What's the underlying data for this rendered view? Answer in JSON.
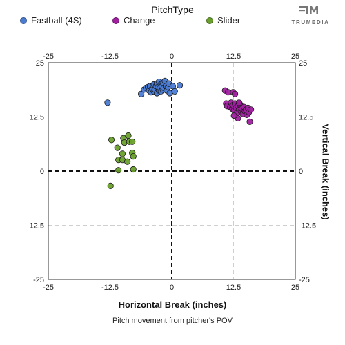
{
  "legend": {
    "title": "PitchType",
    "items": [
      {
        "label": "Fastball (4S)",
        "color": "#4a7bd4"
      },
      {
        "label": "Change",
        "color": "#a020a0"
      },
      {
        "label": "Slider",
        "color": "#6aa02c"
      }
    ]
  },
  "brand": {
    "name": "TRUMEDIA",
    "icon": "trumedia-logo-icon"
  },
  "chart_data": {
    "type": "scatter",
    "title": "",
    "xlabel": "Horizontal Break (inches)",
    "ylabel": "Vertical Break (inches)",
    "caption": "Pitch movement from pitcher's POV",
    "xlim": [
      -25,
      25
    ],
    "ylim": [
      -25,
      25
    ],
    "xticks": [
      -25,
      -12.5,
      0,
      12.5,
      25
    ],
    "yticks": [
      -25,
      -12.5,
      0,
      12.5,
      25
    ],
    "tick_labels": [
      "-25",
      "-12.5",
      "0",
      "12.5",
      "25"
    ],
    "grid": true,
    "zero_lines": "dashed",
    "series": [
      {
        "name": "Fastball (4S)",
        "color": "#4a7bd4",
        "points": [
          [
            -13.0,
            15.8
          ],
          [
            -6.2,
            17.8
          ],
          [
            -5.6,
            18.8
          ],
          [
            -5.2,
            19.2
          ],
          [
            -4.8,
            19.4
          ],
          [
            -4.6,
            18.6
          ],
          [
            -4.4,
            19.6
          ],
          [
            -4.2,
            18.2
          ],
          [
            -4.0,
            19.0
          ],
          [
            -3.8,
            19.8
          ],
          [
            -3.6,
            18.4
          ],
          [
            -3.6,
            20.0
          ],
          [
            -3.4,
            18.8
          ],
          [
            -3.2,
            19.6
          ],
          [
            -3.0,
            20.2
          ],
          [
            -3.0,
            18.0
          ],
          [
            -2.8,
            19.4
          ],
          [
            -2.6,
            20.6
          ],
          [
            -2.6,
            18.6
          ],
          [
            -2.4,
            19.2
          ],
          [
            -2.2,
            20.0
          ],
          [
            -2.2,
            18.4
          ],
          [
            -2.0,
            19.6
          ],
          [
            -1.8,
            20.4
          ],
          [
            -1.8,
            18.8
          ],
          [
            -1.6,
            19.2
          ],
          [
            -1.4,
            20.8
          ],
          [
            -1.2,
            19.6
          ],
          [
            -1.0,
            18.6
          ],
          [
            -0.8,
            19.4
          ],
          [
            -0.6,
            20.2
          ],
          [
            -0.4,
            18.0
          ],
          [
            0.2,
            19.6
          ],
          [
            0.6,
            18.4
          ],
          [
            1.6,
            19.8
          ]
        ]
      },
      {
        "name": "Change",
        "color": "#a020a0",
        "points": [
          [
            10.8,
            18.6
          ],
          [
            11.4,
            18.2
          ],
          [
            12.4,
            18.2
          ],
          [
            12.8,
            17.8
          ],
          [
            11.0,
            15.6
          ],
          [
            11.2,
            15.0
          ],
          [
            11.8,
            14.8
          ],
          [
            12.0,
            15.8
          ],
          [
            12.2,
            14.4
          ],
          [
            12.4,
            15.2
          ],
          [
            12.6,
            14.0
          ],
          [
            12.8,
            15.6
          ],
          [
            13.0,
            14.6
          ],
          [
            13.2,
            13.4
          ],
          [
            13.4,
            15.0
          ],
          [
            13.6,
            14.2
          ],
          [
            13.8,
            15.4
          ],
          [
            14.0,
            13.8
          ],
          [
            14.0,
            15.0
          ],
          [
            14.2,
            14.4
          ],
          [
            14.4,
            13.2
          ],
          [
            14.6,
            14.8
          ],
          [
            14.8,
            13.8
          ],
          [
            15.0,
            14.2
          ],
          [
            15.2,
            13.0
          ],
          [
            15.4,
            14.6
          ],
          [
            15.6,
            13.6
          ],
          [
            16.0,
            14.2
          ],
          [
            13.4,
            12.2
          ],
          [
            15.8,
            11.4
          ],
          [
            13.6,
            15.8
          ],
          [
            12.6,
            12.8
          ]
        ]
      },
      {
        "name": "Slider",
        "color": "#6aa02c",
        "points": [
          [
            -12.2,
            7.2
          ],
          [
            -9.8,
            7.6
          ],
          [
            -8.8,
            8.2
          ],
          [
            -9.6,
            6.6
          ],
          [
            -8.6,
            6.8
          ],
          [
            -8.0,
            6.8
          ],
          [
            -11.0,
            5.4
          ],
          [
            -10.0,
            4.0
          ],
          [
            -8.0,
            4.2
          ],
          [
            -7.8,
            3.4
          ],
          [
            -10.8,
            2.6
          ],
          [
            -10.0,
            2.6
          ],
          [
            -9.0,
            2.2
          ],
          [
            -7.8,
            0.4
          ],
          [
            -10.8,
            0.2
          ],
          [
            -12.4,
            -3.4
          ]
        ]
      }
    ]
  }
}
